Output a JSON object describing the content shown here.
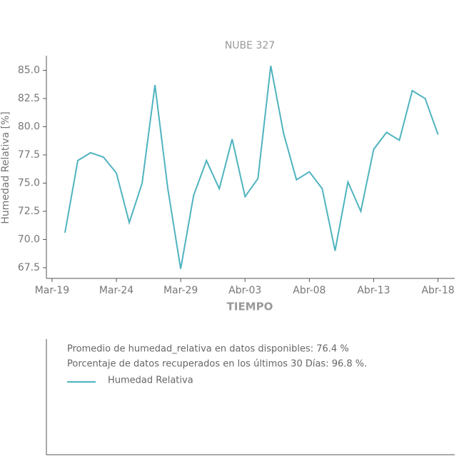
{
  "chart_data": {
    "type": "line",
    "title": "NUBE 327",
    "x_label": "TIEMPO",
    "y_label": "Humedad Relativa [%]",
    "x": [
      1,
      2,
      3,
      4,
      5,
      6,
      7,
      8,
      9,
      10,
      11,
      12,
      13,
      14,
      15,
      16,
      17,
      18,
      19,
      20,
      21,
      22,
      23,
      24,
      25,
      26,
      27,
      28,
      29,
      30
    ],
    "series": [
      {
        "name": "Humedad Relativa",
        "color": "#4fb3bf",
        "values": [
          70.6,
          77.0,
          77.7,
          77.3,
          75.9,
          71.5,
          75.0,
          83.7,
          74.5,
          67.4,
          73.9,
          77.0,
          74.5,
          78.9,
          73.8,
          75.4,
          85.4,
          79.4,
          75.3,
          76.0,
          74.5,
          69.0,
          75.1,
          72.5,
          78.0,
          79.5,
          78.8,
          83.2,
          82.5,
          79.3
        ]
      }
    ],
    "xlim": [
      -0.44,
      31.3
    ],
    "xticks": [
      {
        "value": 0,
        "label": "Mar-19"
      },
      {
        "value": 5,
        "label": "Mar-24"
      },
      {
        "value": 10,
        "label": "Mar-29"
      },
      {
        "value": 15,
        "label": "Abr-03"
      },
      {
        "value": 20,
        "label": "Abr-08"
      },
      {
        "value": 25,
        "label": "Abr-13"
      },
      {
        "value": 30,
        "label": "Abr-18"
      }
    ],
    "ylim": [
      66.55,
      86.3
    ],
    "yticks": [
      67.5,
      {
        "value": 70,
        "label": "70.0"
      },
      72.5,
      {
        "value": 75,
        "label": "75.0"
      },
      77.5,
      {
        "value": 80,
        "label": "80.0"
      },
      82.5,
      {
        "value": 85,
        "label": "85.0"
      }
    ],
    "notes": [
      "Promedio de humedad_relativa en datos disponibles: 76.4 %",
      "Porcentaje de datos recuperados en los últimos 30 Días: 96.8 %."
    ]
  }
}
